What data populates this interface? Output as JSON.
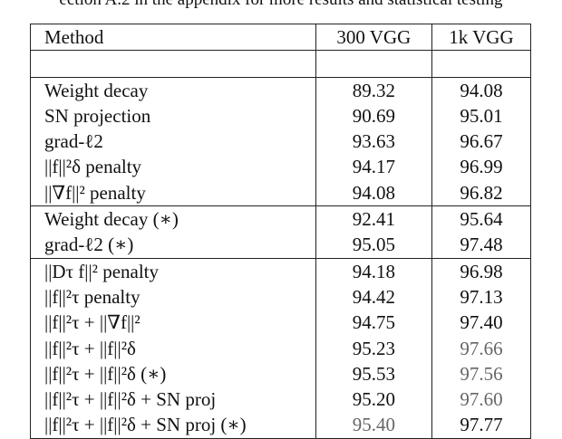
{
  "caption_fragment": "ection A.2 in the appendix for more results and statistical testing",
  "table": {
    "headers": [
      "Method",
      "300 VGG",
      "1k VGG"
    ],
    "groups": [
      {
        "rows": [
          {
            "method": "Weight decay",
            "v1": "89.32",
            "v2": "94.08"
          },
          {
            "method": "SN projection",
            "v1": "90.69",
            "v2": "95.01"
          },
          {
            "method": "grad-ℓ2",
            "v1": "93.63",
            "v2": "96.67"
          },
          {
            "method": "||f||²δ penalty",
            "v1": "94.17",
            "v2": "96.99"
          },
          {
            "method": "||∇f||² penalty",
            "v1": "94.08",
            "v2": "96.82"
          }
        ]
      },
      {
        "rows": [
          {
            "method": "Weight decay (∗)",
            "v1": "92.41",
            "v2": "95.64"
          },
          {
            "method": "grad-ℓ2 (∗)",
            "v1": "95.05",
            "v2": "97.48"
          }
        ]
      },
      {
        "rows": [
          {
            "method": "||Dτ f||² penalty",
            "v1": "94.18",
            "v2": "96.98"
          },
          {
            "method": "||f||²τ penalty",
            "v1": "94.42",
            "v2": "97.13"
          },
          {
            "method": "||f||²τ + ||∇f||²",
            "v1": "94.75",
            "v2": "97.40"
          },
          {
            "method": "||f||²τ + ||f||²δ",
            "v1": "95.23",
            "v2": "97.66"
          },
          {
            "method": "||f||²τ + ||f||²δ (∗)",
            "v1": "95.53",
            "v2": "97.56"
          },
          {
            "method": "||f||²τ + ||f||²δ + SN proj",
            "v1": "95.20",
            "v2": "97.60"
          },
          {
            "method": "||f||²τ + ||f||²δ + SN proj (∗)",
            "v1": "95.40",
            "v2": "97.77"
          }
        ]
      }
    ]
  }
}
